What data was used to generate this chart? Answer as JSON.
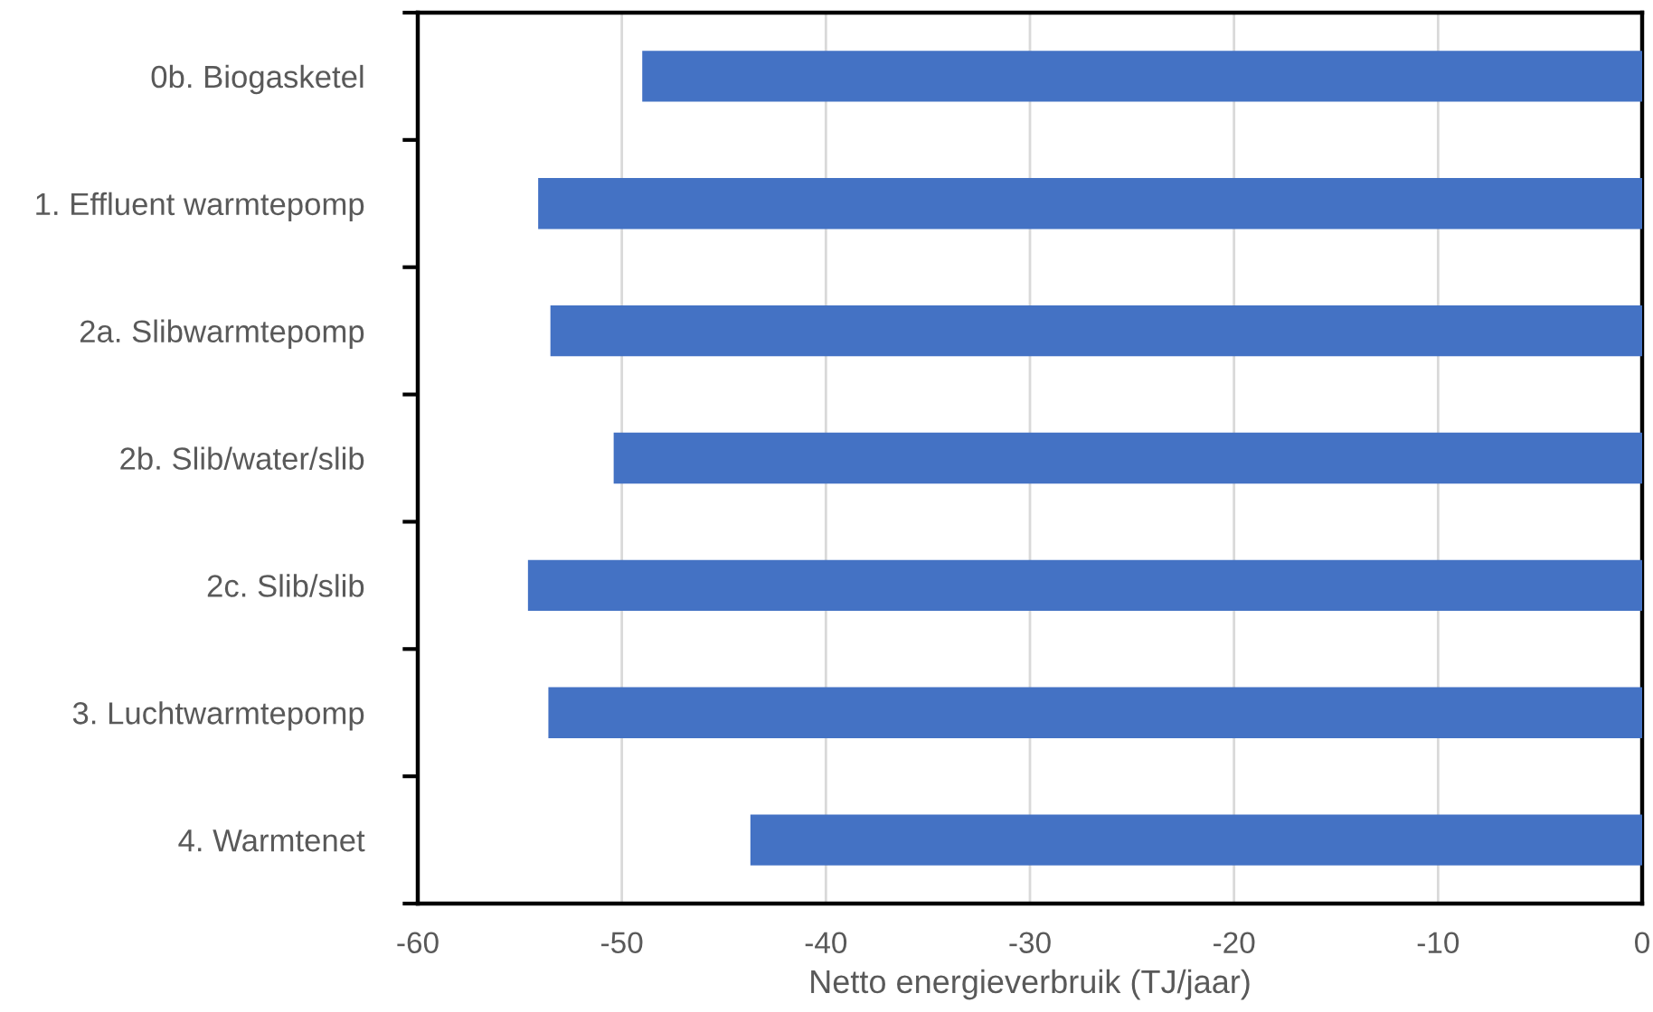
{
  "chart_data": {
    "type": "bar",
    "orientation": "horizontal",
    "categories": [
      "0b. Biogasketel",
      "1. Effluent warmtepomp",
      "2a. Slibwarmtepomp",
      "2b. Slib/water/slib",
      "2c. Slib/slib",
      "3. Luchtwarmtepomp",
      "4. Warmtenet"
    ],
    "values": [
      -49.0,
      -54.1,
      -53.5,
      -50.4,
      -54.6,
      -53.6,
      -43.7
    ],
    "color": "#4472c4",
    "xlabel": "Netto energieverbruik (TJ/jaar)",
    "xlim": [
      -60,
      0
    ],
    "xticks": [
      -60,
      -50,
      -40,
      -30,
      -20,
      -10,
      0
    ],
    "grid": "x"
  }
}
